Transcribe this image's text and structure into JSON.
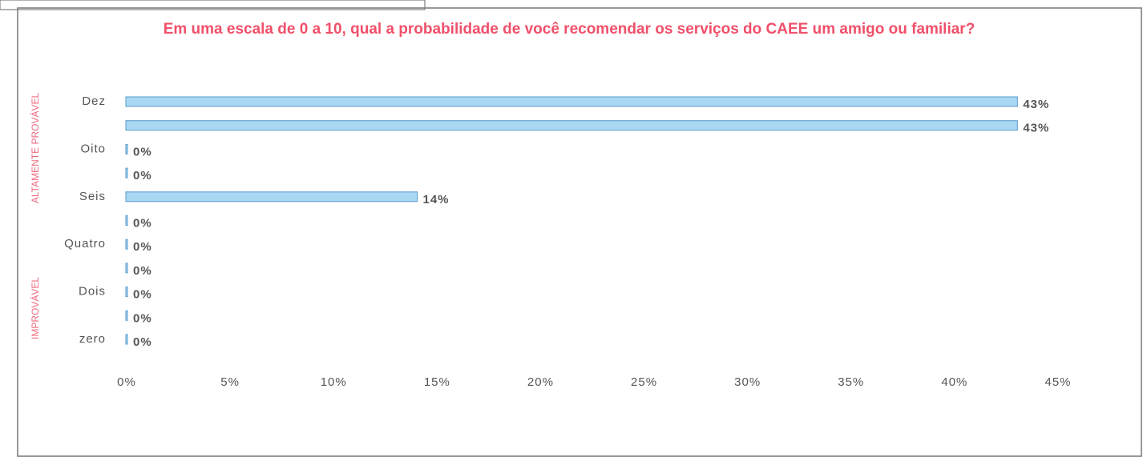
{
  "chart_data": {
    "type": "bar",
    "orientation": "horizontal",
    "title": "Em uma escala de 0 a 10, qual a probabilidade de você recomendar os serviços do CAEE um amigo ou familiar?",
    "categories": [
      "Dez",
      null,
      "Oito",
      null,
      "Seis",
      null,
      "Quatro",
      null,
      "Dois",
      null,
      "zero"
    ],
    "values": [
      43,
      43,
      0,
      0,
      14,
      0,
      0,
      0,
      0,
      0,
      0
    ],
    "value_labels": [
      "43%",
      "43%",
      "0%",
      "0%",
      "14%",
      "0%",
      "0%",
      "0%",
      "0%",
      "0%",
      "0%"
    ],
    "color": "#a8d8f2",
    "xlim": [
      0,
      45
    ],
    "xticks": [
      {
        "value": 0,
        "label": "0%"
      },
      {
        "value": 5,
        "label": "5%"
      },
      {
        "value": 10,
        "label": "10%"
      },
      {
        "value": 15,
        "label": "15%"
      },
      {
        "value": 20,
        "label": "20%"
      },
      {
        "value": 25,
        "label": "25%"
      },
      {
        "value": 30,
        "label": "30%"
      },
      {
        "value": 35,
        "label": "35%"
      },
      {
        "value": 40,
        "label": "40%"
      },
      {
        "value": 45,
        "label": "45%"
      }
    ],
    "annotations": [
      "ALTAMENTE PROVÁVEL",
      "IMPROVÁVEL"
    ]
  }
}
